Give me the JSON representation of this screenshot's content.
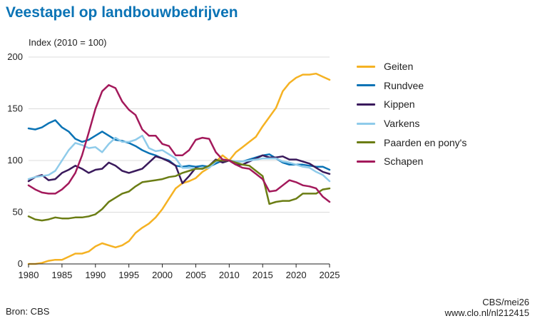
{
  "title": "Veestapel op landbouwbedrijven",
  "source": "Bron: CBS",
  "credit": {
    "line1": "CBS/mei26",
    "line2": "www.clo.nl/nl212415"
  },
  "chart_data": {
    "type": "line",
    "title": "Veestapel op landbouwbedrijven",
    "ylabel": "Index (2010 = 100)",
    "xlabel": "",
    "xlim": [
      1980,
      2025
    ],
    "ylim": [
      0,
      200
    ],
    "x_ticks": [
      1980,
      1985,
      1990,
      1995,
      2000,
      2005,
      2010,
      2015,
      2020,
      2025
    ],
    "y_ticks": [
      0,
      50,
      100,
      150,
      200
    ],
    "grid": "horizontal",
    "legend_position": "right",
    "x": [
      1980,
      1981,
      1982,
      1983,
      1984,
      1985,
      1986,
      1987,
      1988,
      1989,
      1990,
      1991,
      1992,
      1993,
      1994,
      1995,
      1996,
      1997,
      1998,
      1999,
      2000,
      2001,
      2002,
      2003,
      2004,
      2005,
      2006,
      2007,
      2008,
      2009,
      2010,
      2011,
      2012,
      2013,
      2014,
      2015,
      2016,
      2017,
      2018,
      2019,
      2020,
      2021,
      2022,
      2023,
      2024,
      2025
    ],
    "series": [
      {
        "name": "Geiten",
        "color": "#f5b223",
        "values": [
          0,
          0,
          1,
          3,
          4,
          4,
          7,
          10,
          10,
          12,
          17,
          20,
          18,
          16,
          18,
          22,
          30,
          35,
          39,
          45,
          53,
          63,
          73,
          78,
          80,
          83,
          89,
          93,
          99,
          105,
          100,
          108,
          113,
          118,
          123,
          133,
          142,
          151,
          167,
          175,
          180,
          183,
          183,
          184,
          181,
          178
        ]
      },
      {
        "name": "Rundvee",
        "color": "#0a73b5",
        "values": [
          131,
          130,
          132,
          136,
          139,
          132,
          128,
          121,
          118,
          120,
          124,
          128,
          124,
          120,
          119,
          117,
          114,
          110,
          107,
          105,
          102,
          100,
          95,
          94,
          95,
          94,
          95,
          94,
          97,
          100,
          100,
          99,
          99,
          101,
          103,
          105,
          106,
          102,
          98,
          96,
          96,
          96,
          95,
          94,
          94,
          91
        ]
      },
      {
        "name": "Kippen",
        "color": "#3a1a5c",
        "values": [
          80,
          84,
          86,
          81,
          82,
          88,
          91,
          95,
          92,
          88,
          91,
          92,
          98,
          95,
          90,
          88,
          90,
          92,
          98,
          104,
          102,
          99,
          95,
          78,
          85,
          93,
          92,
          95,
          101,
          98,
          100,
          96,
          96,
          99,
          102,
          105,
          103,
          103,
          104,
          101,
          101,
          99,
          97,
          93,
          89,
          87
        ]
      },
      {
        "name": "Varkens",
        "color": "#8fcbea",
        "values": [
          82,
          84,
          85,
          86,
          90,
          100,
          110,
          117,
          115,
          112,
          113,
          108,
          116,
          122,
          118,
          118,
          120,
          124,
          112,
          109,
          110,
          106,
          102,
          93,
          93,
          92,
          93,
          93,
          99,
          101,
          100,
          99,
          99,
          100,
          101,
          102,
          102,
          102,
          99,
          98,
          96,
          94,
          93,
          89,
          86,
          80
        ]
      },
      {
        "name": "Paarden en pony's",
        "color": "#6b7d14",
        "values": [
          46,
          43,
          42,
          43,
          45,
          44,
          44,
          45,
          45,
          46,
          48,
          53,
          60,
          64,
          68,
          70,
          75,
          79,
          80,
          81,
          82,
          84,
          85,
          88,
          90,
          92,
          92,
          95,
          100,
          100,
          100,
          98,
          96,
          95,
          90,
          85,
          58,
          60,
          61,
          61,
          63,
          68,
          68,
          68,
          72,
          73
        ]
      },
      {
        "name": "Schapen",
        "color": "#a3195b",
        "values": [
          76,
          72,
          69,
          68,
          68,
          72,
          78,
          88,
          105,
          127,
          150,
          167,
          173,
          170,
          157,
          149,
          144,
          130,
          124,
          124,
          116,
          114,
          105,
          105,
          110,
          120,
          122,
          121,
          108,
          101,
          100,
          96,
          93,
          92,
          87,
          82,
          70,
          71,
          76,
          81,
          79,
          76,
          75,
          73,
          65,
          60
        ]
      }
    ]
  }
}
